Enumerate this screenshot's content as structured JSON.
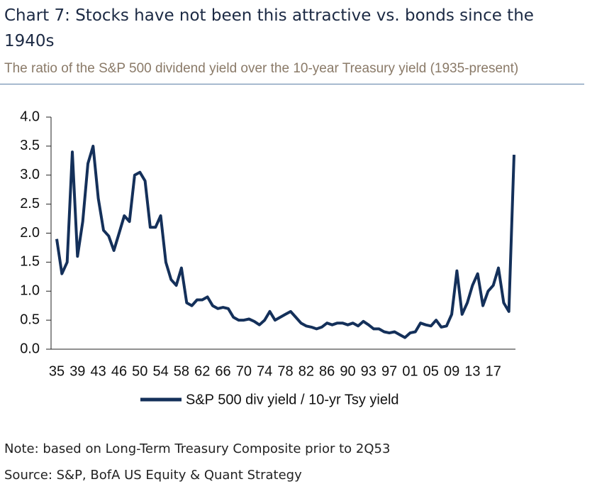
{
  "chart_data": {
    "type": "line",
    "title": "Chart 7: Stocks have not been this attractive vs. bonds since the 1940s",
    "subtitle": "The ratio of the S&P 500 dividend yield over the 10-year Treasury yield (1935-present)",
    "categories": [
      "35",
      null,
      null,
      null,
      "39",
      null,
      null,
      null,
      "43",
      null,
      null,
      null,
      "46",
      null,
      null,
      null,
      "50",
      null,
      null,
      null,
      "54",
      null,
      null,
      null,
      "58",
      null,
      null,
      null,
      "62",
      null,
      null,
      null,
      "66",
      null,
      null,
      null,
      "70",
      null,
      null,
      null,
      "74",
      null,
      null,
      null,
      "78",
      null,
      null,
      null,
      "82",
      null,
      null,
      null,
      "86",
      null,
      null,
      null,
      "90",
      null,
      null,
      null,
      "93",
      null,
      null,
      null,
      "97",
      null,
      null,
      null,
      "01",
      null,
      null,
      null,
      "05",
      null,
      null,
      null,
      "09",
      null,
      null,
      null,
      "13",
      null,
      null,
      null,
      "17",
      null,
      null,
      null,
      null
    ],
    "series": [
      {
        "name": "S&P 500 div yield / 10-yr Tsy yield",
        "color": "#14305a",
        "values": [
          1.9,
          1.3,
          1.5,
          3.4,
          1.6,
          2.2,
          3.2,
          3.5,
          2.6,
          2.05,
          1.95,
          1.7,
          2.0,
          2.3,
          2.2,
          3.0,
          3.05,
          2.9,
          2.1,
          2.1,
          2.3,
          1.5,
          1.2,
          1.1,
          1.4,
          0.8,
          0.75,
          0.85,
          0.85,
          0.9,
          0.75,
          0.7,
          0.72,
          0.7,
          0.55,
          0.5,
          0.5,
          0.52,
          0.48,
          0.42,
          0.5,
          0.65,
          0.5,
          0.55,
          0.6,
          0.65,
          0.55,
          0.45,
          0.4,
          0.38,
          0.35,
          0.38,
          0.45,
          0.42,
          0.45,
          0.45,
          0.42,
          0.45,
          0.4,
          0.48,
          0.42,
          0.35,
          0.35,
          0.3,
          0.28,
          0.3,
          0.25,
          0.2,
          0.28,
          0.3,
          0.45,
          0.42,
          0.4,
          0.5,
          0.38,
          0.4,
          0.6,
          1.35,
          0.6,
          0.8,
          1.1,
          1.3,
          0.75,
          1.0,
          1.1,
          1.4,
          0.8,
          0.65,
          3.35
        ]
      }
    ],
    "ylim": [
      0,
      4
    ],
    "yticks": [
      {
        "value": 0,
        "label": "0.0"
      },
      {
        "value": 0.5,
        "label": "0.5"
      },
      {
        "value": 1,
        "label": "1.0"
      },
      {
        "value": 1.5,
        "label": "1.5"
      },
      {
        "value": 2,
        "label": "2.0"
      },
      {
        "value": 2.5,
        "label": "2.5"
      },
      {
        "value": 3,
        "label": "3.0"
      },
      {
        "value": 3.5,
        "label": "3.5"
      },
      {
        "value": 4,
        "label": "4.0"
      }
    ],
    "grid": false,
    "note": "Note: based on Long-Term Treasury Composite prior to 2Q53",
    "source": "Source: S&P, BofA US Equity & Quant Strategy"
  }
}
